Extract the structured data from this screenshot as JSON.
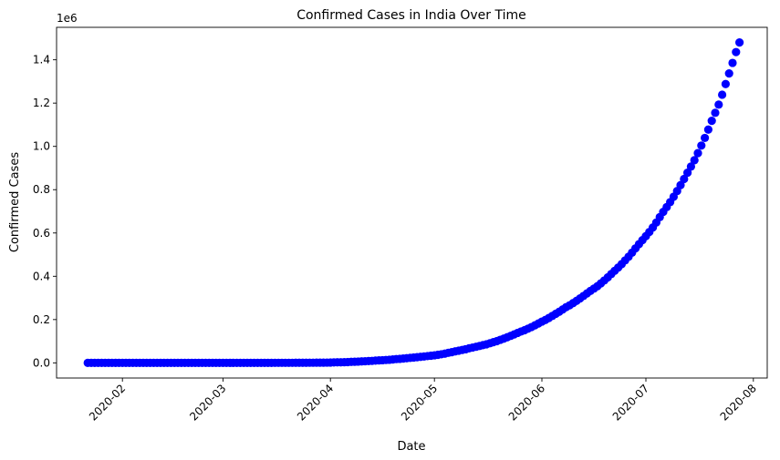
{
  "chart_data": {
    "type": "scatter",
    "title": "Confirmed Cases in India Over Time",
    "xlabel": "Date",
    "ylabel": "Confirmed Cases",
    "y_offset_label": "1e6",
    "x_start": "2020-01-22",
    "x_end": "2020-07-27",
    "xlim": [
      "2020-01-13",
      "2020-08-05"
    ],
    "ylim": [
      -0.07,
      1.55
    ],
    "y_scale_multiplier": 1000000,
    "x_ticks": [
      "2020-02-01",
      "2020-03-01",
      "2020-04-01",
      "2020-05-01",
      "2020-06-01",
      "2020-07-01",
      "2020-08-01"
    ],
    "x_tick_labels": [
      "2020-02",
      "2020-03",
      "2020-04",
      "2020-05",
      "2020-06",
      "2020-07",
      "2020-08"
    ],
    "y_ticks": [
      0.0,
      0.2,
      0.4,
      0.6,
      0.8,
      1.0,
      1.2,
      1.4
    ],
    "y_tick_labels": [
      "0.0",
      "0.2",
      "0.4",
      "0.6",
      "0.8",
      "1.0",
      "1.2",
      "1.4"
    ],
    "marker_color": "#0000ff",
    "grid": false,
    "x_tick_rotation_deg": 45,
    "series": [
      {
        "values": [
          0,
          0,
          0,
          0,
          0,
          0,
          0,
          0,
          0,
          1,
          1,
          2,
          3,
          3,
          3,
          3,
          3,
          3,
          3,
          3,
          3,
          3,
          3,
          3,
          3,
          3,
          3,
          3,
          3,
          3,
          3,
          3,
          3,
          3,
          3,
          3,
          3,
          3,
          3,
          3,
          3,
          5,
          5,
          28,
          30,
          31,
          34,
          39,
          43,
          56,
          62,
          73,
          82,
          102,
          113,
          119,
          142,
          156,
          194,
          244,
          330,
          396,
          499,
          536,
          657,
          727,
          887,
          987,
          1024,
          1251,
          1397,
          1998,
          2543,
          2567,
          3082,
          3588,
          4778,
          5311,
          5916,
          6725,
          7598,
          8446,
          9205,
          10453,
          11487,
          12322,
          13430,
          14352,
          15722,
          17615,
          18539,
          20080,
          21370,
          23077,
          24530,
          26283,
          27890,
          29451,
          31324,
          33062,
          34863,
          37257,
          39699,
          42505,
          46437,
          49400,
          52987,
          56351,
          59695,
          62808,
          67161,
          70768,
          74292,
          78055,
          81997,
          85784,
          90648,
          95698,
          100328,
          106475,
          112028,
          118226,
          124794,
          131423,
          138536,
          144950,
          150793,
          158086,
          165386,
          173491,
          181827,
          190609,
          198370,
          207191,
          216824,
          226713,
          236184,
          246622,
          257486,
          265928,
          276146,
          286579,
          297535,
          308993,
          320922,
          332424,
          343091,
          354065,
          366946,
          380532,
          395048,
          410461,
          425282,
          440215,
          456183,
          473105,
          490401,
          508953,
          528859,
          548318,
          566840,
          585481,
          604641,
          625544,
          648315,
          673165,
          697413,
          719665,
          742417,
          767296,
          793802,
          820916,
          849553,
          878254,
          906752,
          936181,
          968876,
          1003832,
          1039084,
          1077781,
          1118043,
          1155191,
          1193078,
          1238798,
          1288108,
          1337024,
          1385635,
          1435616,
          1480073
        ]
      }
    ]
  }
}
